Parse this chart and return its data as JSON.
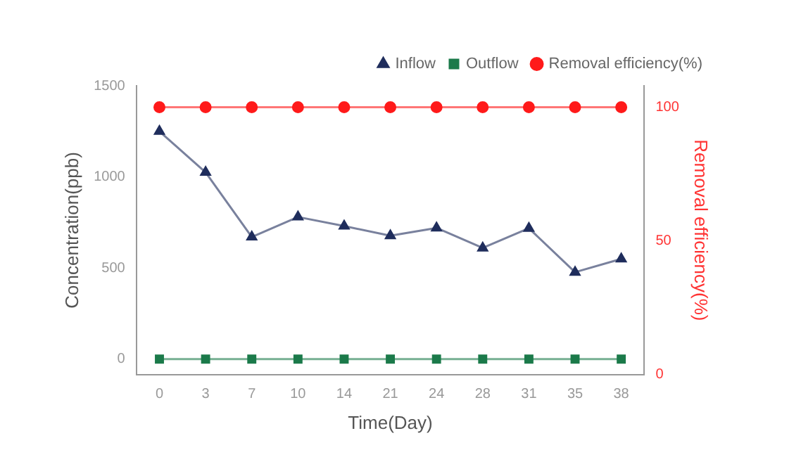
{
  "chart_data": {
    "type": "line",
    "xlabel": "Time(Day)",
    "ylabel": "Concentration(ppb)",
    "y2label": "Removal efficiency(%)",
    "categories": [
      "0",
      "3",
      "7",
      "10",
      "14",
      "21",
      "24",
      "28",
      "31",
      "35",
      "38"
    ],
    "series": [
      {
        "name": "Inflow",
        "color": "#1f2d5c",
        "marker": "triangle",
        "values": [
          1250,
          1025,
          670,
          780,
          730,
          677,
          720,
          610,
          718,
          477,
          550
        ]
      },
      {
        "name": "Outflow",
        "color": "#1b7a4a",
        "marker": "square",
        "values": [
          0,
          0,
          0,
          0,
          0,
          0,
          0,
          0,
          0,
          0,
          0
        ]
      },
      {
        "name": "Removal efficiency(%)",
        "color": "#ff1a1a",
        "marker": "circle",
        "axis": "y2",
        "values": [
          100,
          100,
          100,
          100,
          100,
          100,
          100,
          100,
          100,
          100,
          100
        ]
      }
    ],
    "ylim": [
      -85,
      1500
    ],
    "yticks": [
      0,
      500,
      1000,
      1500
    ],
    "y2lim": [
      0,
      108
    ],
    "y2ticks": [
      0,
      50,
      100
    ],
    "grid": false,
    "legend": "top right",
    "line_style": "solid"
  }
}
